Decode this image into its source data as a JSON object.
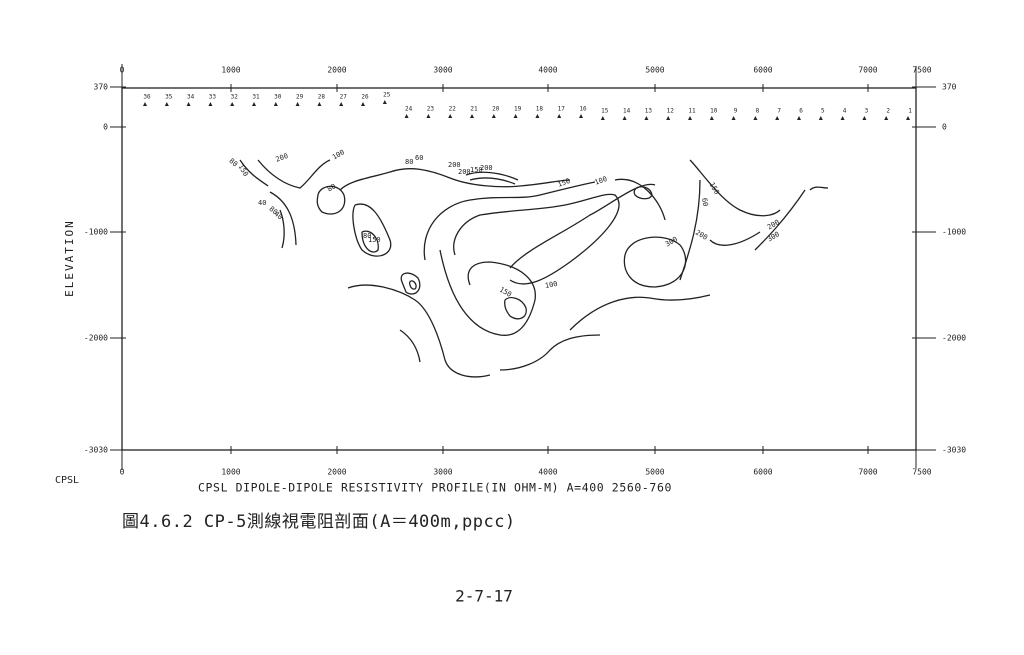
{
  "figure": {
    "top_ticks": [
      "0",
      "1000",
      "2000",
      "3000",
      "4000",
      "5000",
      "6000",
      "7000",
      "7500"
    ],
    "bottom_ticks": [
      "0",
      "1000",
      "2000",
      "3000",
      "4000",
      "5000",
      "6000",
      "7000",
      "7500"
    ],
    "left_ticks": [
      "370",
      "0",
      "-1000",
      "-2000",
      "-3030"
    ],
    "right_ticks": [
      "370",
      "0",
      "-1000",
      "-2000",
      "-3030"
    ],
    "y_label": "ELEVATION",
    "corner_label": "CPSL",
    "profile_title": "CPSL DIPOLE-DIPOLE RESISTIVITY PROFILE(IN OHM-M) A=400 2560-760",
    "stations": [
      "36",
      "35",
      "34",
      "33",
      "32",
      "31",
      "30",
      "29",
      "28",
      "27",
      "26",
      "25",
      "24",
      "23",
      "22",
      "21",
      "20",
      "19",
      "18",
      "17",
      "16",
      "15",
      "14",
      "13",
      "12",
      "11",
      "10",
      "9",
      "8",
      "7",
      "6",
      "5",
      "4",
      "3",
      "2",
      "1"
    ],
    "contour_labels": [
      "80",
      "150",
      "200",
      "100",
      "80",
      "80",
      "60",
      "40",
      "80",
      "40",
      "80",
      "150",
      "200",
      "200",
      "150",
      "200",
      "150",
      "100",
      "60",
      "150",
      "300",
      "200",
      "200",
      "300",
      "150",
      "100"
    ]
  },
  "caption": "圖4.6.2 CP-5測線視電阻剖面(A＝400m,ppcc)",
  "page_number": "2-7-17"
}
